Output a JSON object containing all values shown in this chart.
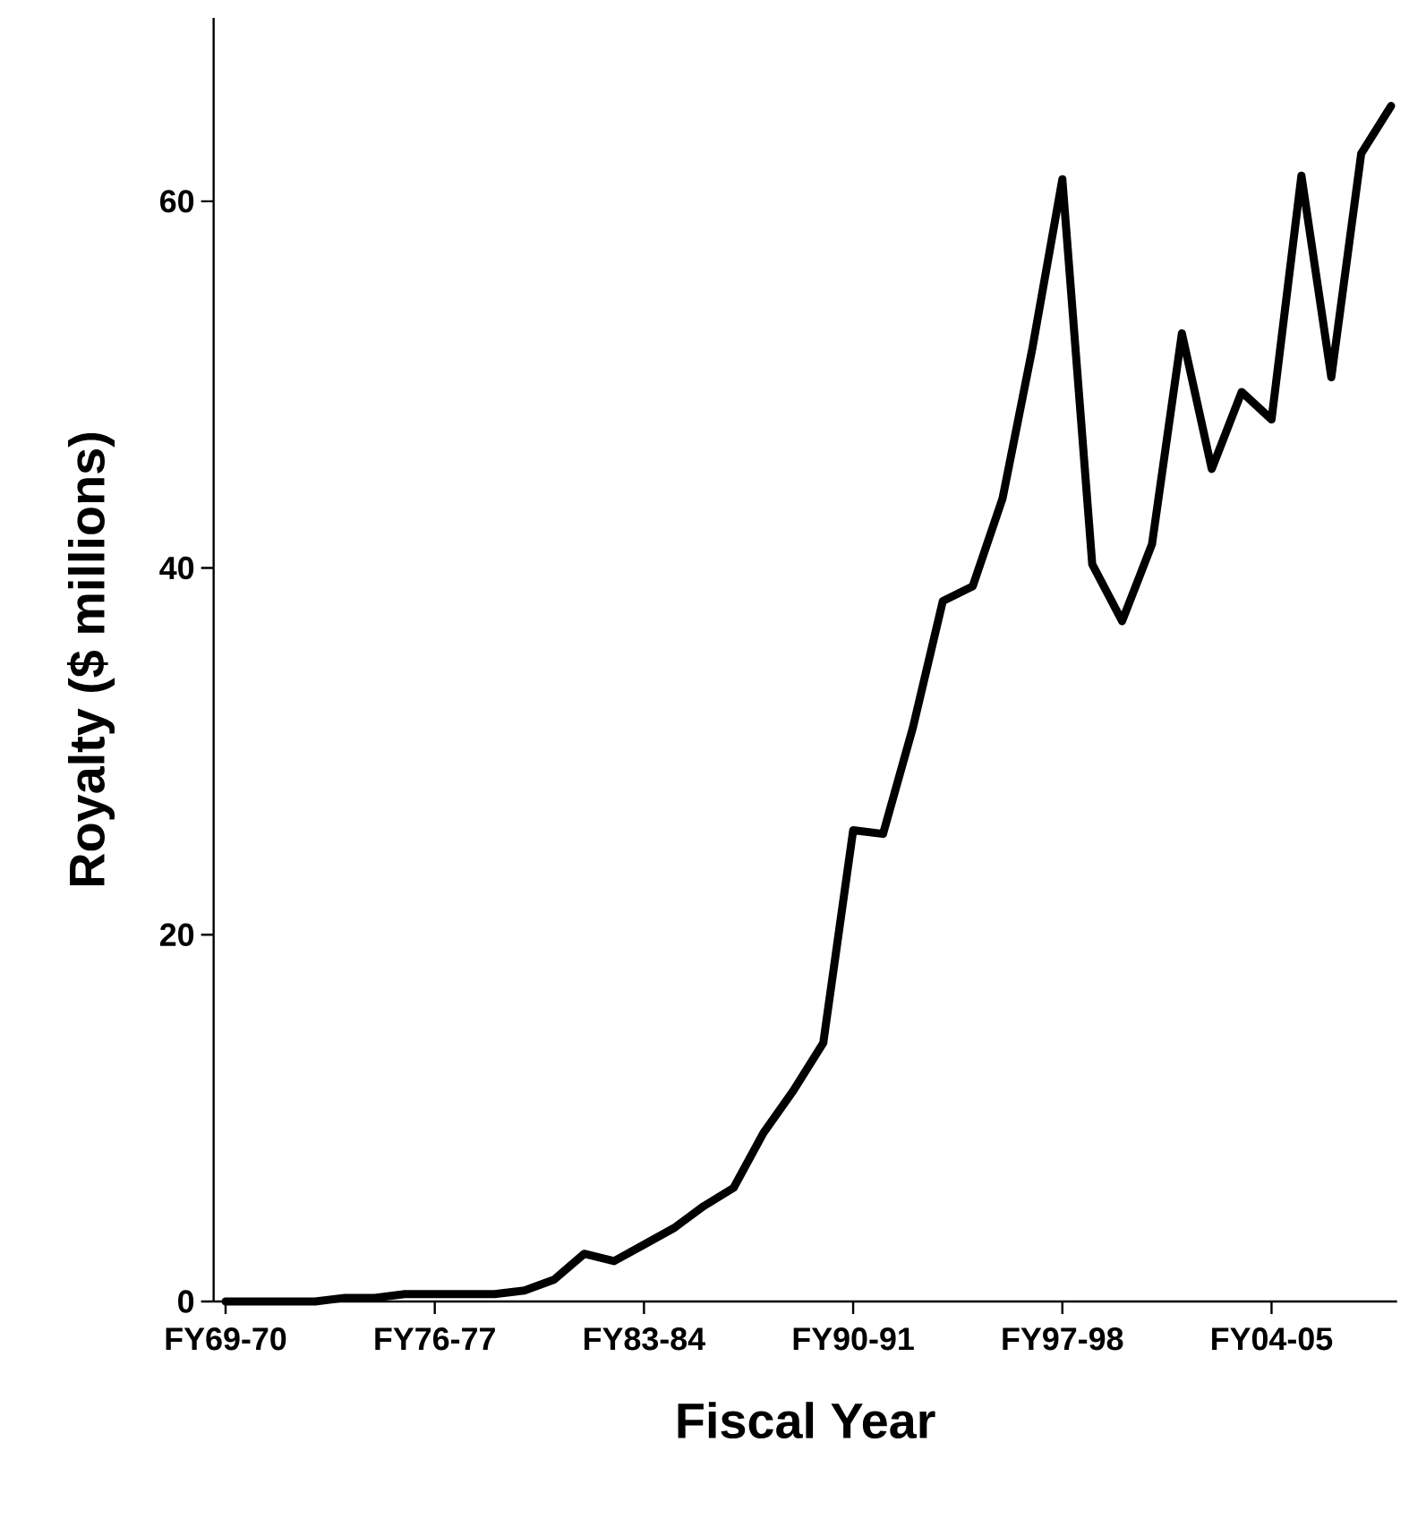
{
  "chart_data": {
    "type": "line",
    "xlabel": "Fiscal Year",
    "ylabel": "Royalty ($ millions)",
    "categories": [
      "FY69-70",
      null,
      null,
      null,
      null,
      null,
      null,
      "FY76-77",
      null,
      null,
      null,
      null,
      null,
      null,
      "FY83-84",
      null,
      null,
      null,
      null,
      null,
      null,
      "FY90-91",
      null,
      null,
      null,
      null,
      null,
      null,
      "FY97-98",
      null,
      null,
      null,
      null,
      null,
      null,
      "FY04-05",
      null,
      null,
      null,
      null
    ],
    "series": [
      {
        "color": "#000000",
        "values": [
          0.0,
          0.0,
          0.0,
          0.0,
          0.2,
          0.2,
          0.4,
          0.4,
          0.4,
          0.4,
          0.6,
          1.2,
          2.6,
          2.2,
          3.1,
          4.0,
          5.2,
          6.2,
          9.2,
          11.5,
          14.1,
          25.7,
          25.5,
          31.3,
          38.2,
          39.0,
          43.8,
          52.0,
          61.2,
          40.2,
          37.1,
          41.3,
          52.8,
          45.4,
          49.6,
          48.1,
          61.4,
          50.4,
          62.6,
          65.2
        ]
      }
    ],
    "ylim": [
      0,
      70
    ],
    "yticks": [
      0,
      20,
      40,
      60
    ],
    "grid": false,
    "marker": "none",
    "line_style": "solid"
  }
}
